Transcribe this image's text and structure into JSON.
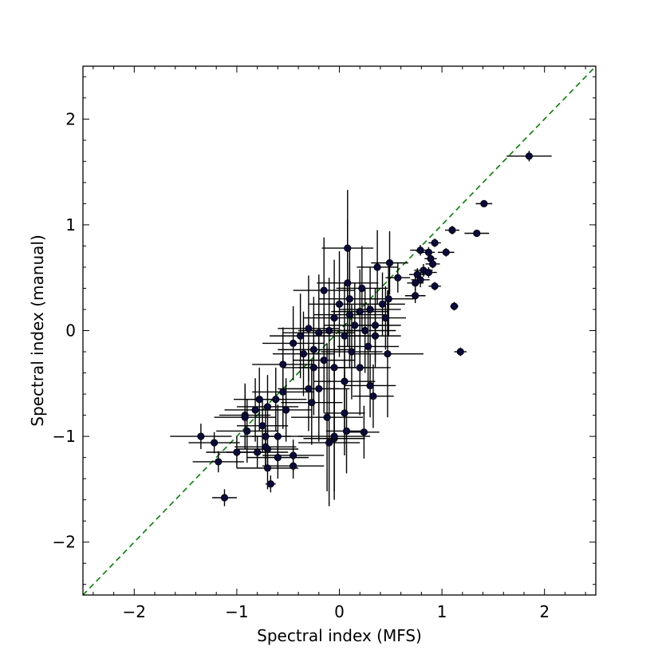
{
  "chart_data": {
    "type": "scatter",
    "title": "",
    "xlabel": "Spectral index (MFS)",
    "ylabel": "Spectral index (manual)",
    "xlim": [
      -2.5,
      2.5
    ],
    "ylim": [
      -2.5,
      2.5
    ],
    "xticks": [
      -2,
      -1,
      0,
      1,
      2
    ],
    "yticks": [
      -2,
      -1,
      0,
      1,
      2
    ],
    "xtick_labels": [
      "−2",
      "−1",
      "0",
      "1",
      "2"
    ],
    "ytick_labels": [
      "−2",
      "−1",
      "0",
      "1",
      "2"
    ],
    "grid": false,
    "reference_line": {
      "style": "dashed",
      "color": "#008000",
      "slope": 1,
      "intercept": 0
    },
    "marker_color": "#0a0a3c",
    "errorbar_color": "#000000",
    "series": [
      {
        "points": [
          {
            "x": 1.85,
            "y": 1.65,
            "xerr": 0.22,
            "yerr": 0.05
          },
          {
            "x": 1.41,
            "y": 1.2,
            "xerr": 0.08,
            "yerr": 0.03
          },
          {
            "x": 1.1,
            "y": 0.95,
            "xerr": 0.07,
            "yerr": 0.04
          },
          {
            "x": 1.34,
            "y": 0.92,
            "xerr": 0.12,
            "yerr": 0.03
          },
          {
            "x": 0.93,
            "y": 0.83,
            "xerr": 0.06,
            "yerr": 0.04
          },
          {
            "x": 1.04,
            "y": 0.74,
            "xerr": 0.08,
            "yerr": 0.04
          },
          {
            "x": 0.79,
            "y": 0.76,
            "xerr": 0.1,
            "yerr": 0.05
          },
          {
            "x": 0.87,
            "y": 0.74,
            "xerr": 0.06,
            "yerr": 0.05
          },
          {
            "x": 0.89,
            "y": 0.68,
            "xerr": 0.06,
            "yerr": 0.04
          },
          {
            "x": 0.91,
            "y": 0.63,
            "xerr": 0.07,
            "yerr": 0.04
          },
          {
            "x": 0.82,
            "y": 0.57,
            "xerr": 0.09,
            "yerr": 0.06
          },
          {
            "x": 0.87,
            "y": 0.55,
            "xerr": 0.08,
            "yerr": 0.05
          },
          {
            "x": 0.76,
            "y": 0.53,
            "xerr": 0.08,
            "yerr": 0.06
          },
          {
            "x": 0.79,
            "y": 0.48,
            "xerr": 0.09,
            "yerr": 0.07
          },
          {
            "x": 0.74,
            "y": 0.45,
            "xerr": 0.08,
            "yerr": 0.07
          },
          {
            "x": 0.93,
            "y": 0.42,
            "xerr": 0.06,
            "yerr": 0.04
          },
          {
            "x": 0.74,
            "y": 0.33,
            "xerr": 0.1,
            "yerr": 0.07
          },
          {
            "x": 1.12,
            "y": 0.23,
            "xerr": 0.04,
            "yerr": 0.04
          },
          {
            "x": 1.18,
            "y": -0.2,
            "xerr": 0.06,
            "yerr": 0.04
          },
          {
            "x": 0.57,
            "y": 0.5,
            "xerr": 0.12,
            "yerr": 0.14
          },
          {
            "x": 0.49,
            "y": 0.64,
            "xerr": 0.18,
            "yerr": 0.3
          },
          {
            "x": 0.37,
            "y": 0.6,
            "xerr": 0.2,
            "yerr": 0.35
          },
          {
            "x": 0.08,
            "y": 0.78,
            "xerr": 0.25,
            "yerr": 0.55
          },
          {
            "x": 0.08,
            "y": 0.45,
            "xerr": 0.3,
            "yerr": 0.6
          },
          {
            "x": 0.48,
            "y": 0.3,
            "xerr": 0.25,
            "yerr": 0.35
          },
          {
            "x": 0.42,
            "y": 0.25,
            "xerr": 0.22,
            "yerr": 0.3
          },
          {
            "x": 0.3,
            "y": 0.2,
            "xerr": 0.3,
            "yerr": 0.4
          },
          {
            "x": 0.2,
            "y": 0.18,
            "xerr": 0.28,
            "yerr": 0.4
          },
          {
            "x": 0.1,
            "y": 0.15,
            "xerr": 0.35,
            "yerr": 0.5
          },
          {
            "x": 0.0,
            "y": 0.25,
            "xerr": 0.3,
            "yerr": 0.5
          },
          {
            "x": -0.05,
            "y": 0.12,
            "xerr": 0.3,
            "yerr": 0.55
          },
          {
            "x": 0.15,
            "y": 0.05,
            "xerr": 0.3,
            "yerr": 0.4
          },
          {
            "x": 0.25,
            "y": 0.0,
            "xerr": 0.3,
            "yerr": 0.4
          },
          {
            "x": 0.35,
            "y": -0.05,
            "xerr": 0.25,
            "yerr": 0.3
          },
          {
            "x": 0.47,
            "y": -0.22,
            "xerr": 0.35,
            "yerr": 0.6
          },
          {
            "x": 0.28,
            "y": -0.15,
            "xerr": 0.3,
            "yerr": 0.4
          },
          {
            "x": 0.05,
            "y": -0.05,
            "xerr": 0.3,
            "yerr": 0.5
          },
          {
            "x": -0.1,
            "y": 0.0,
            "xerr": 0.3,
            "yerr": 0.5
          },
          {
            "x": -0.2,
            "y": -0.02,
            "xerr": 0.35,
            "yerr": 0.55
          },
          {
            "x": -0.3,
            "y": 0.02,
            "xerr": 0.3,
            "yerr": 0.5
          },
          {
            "x": -0.38,
            "y": -0.05,
            "xerr": 0.3,
            "yerr": 0.4
          },
          {
            "x": -0.45,
            "y": -0.12,
            "xerr": 0.3,
            "yerr": 0.35
          },
          {
            "x": -0.25,
            "y": -0.18,
            "xerr": 0.35,
            "yerr": 0.5
          },
          {
            "x": -0.15,
            "y": -0.28,
            "xerr": 0.3,
            "yerr": 0.5
          },
          {
            "x": -0.05,
            "y": -0.35,
            "xerr": 0.35,
            "yerr": 0.6
          },
          {
            "x": 0.2,
            "y": -0.35,
            "xerr": 0.3,
            "yerr": 0.45
          },
          {
            "x": -0.25,
            "y": -0.35,
            "xerr": 0.3,
            "yerr": 0.45
          },
          {
            "x": -0.55,
            "y": -0.32,
            "xerr": 0.3,
            "yerr": 0.35
          },
          {
            "x": -0.2,
            "y": -0.55,
            "xerr": 0.3,
            "yerr": 0.5
          },
          {
            "x": -0.3,
            "y": -0.55,
            "xerr": 0.3,
            "yerr": 0.4
          },
          {
            "x": -0.27,
            "y": -0.68,
            "xerr": 0.3,
            "yerr": 0.4
          },
          {
            "x": 0.05,
            "y": -0.48,
            "xerr": 0.3,
            "yerr": 0.5
          },
          {
            "x": 0.3,
            "y": -0.52,
            "xerr": 0.25,
            "yerr": 0.3
          },
          {
            "x": 0.33,
            "y": -0.62,
            "xerr": 0.2,
            "yerr": 0.3
          },
          {
            "x": -0.55,
            "y": -0.58,
            "xerr": 0.3,
            "yerr": 0.35
          },
          {
            "x": -0.62,
            "y": -0.65,
            "xerr": 0.3,
            "yerr": 0.3
          },
          {
            "x": -0.7,
            "y": -0.72,
            "xerr": 0.3,
            "yerr": 0.3
          },
          {
            "x": -0.78,
            "y": -0.65,
            "xerr": 0.25,
            "yerr": 0.3
          },
          {
            "x": -0.82,
            "y": -0.75,
            "xerr": 0.3,
            "yerr": 0.3
          },
          {
            "x": -0.92,
            "y": -0.8,
            "xerr": 0.25,
            "yerr": 0.3
          },
          {
            "x": -0.75,
            "y": -0.9,
            "xerr": 0.25,
            "yerr": 0.25
          },
          {
            "x": -0.52,
            "y": -0.75,
            "xerr": 0.25,
            "yerr": 0.3
          },
          {
            "x": 0.05,
            "y": -0.78,
            "xerr": 0.2,
            "yerr": 0.4
          },
          {
            "x": -0.12,
            "y": -0.82,
            "xerr": 0.35,
            "yerr": 0.7
          },
          {
            "x": 0.07,
            "y": -0.95,
            "xerr": 0.2,
            "yerr": 0.4
          },
          {
            "x": 0.24,
            "y": -0.96,
            "xerr": 0.15,
            "yerr": 0.25
          },
          {
            "x": -0.05,
            "y": -1.02,
            "xerr": 0.3,
            "yerr": 0.5
          },
          {
            "x": -0.1,
            "y": -1.06,
            "xerr": 0.3,
            "yerr": 0.6
          },
          {
            "x": -0.05,
            "y": -1.0,
            "xerr": 0.35,
            "yerr": 0.6
          },
          {
            "x": -0.6,
            "y": -1.0,
            "xerr": 0.25,
            "yerr": 0.3
          },
          {
            "x": -0.72,
            "y": -1.0,
            "xerr": 0.25,
            "yerr": 0.3
          },
          {
            "x": -0.9,
            "y": -0.95,
            "xerr": 0.3,
            "yerr": 0.3
          },
          {
            "x": -0.92,
            "y": -0.82,
            "xerr": 0.3,
            "yerr": 0.3
          },
          {
            "x": -1.35,
            "y": -1.0,
            "xerr": 0.3,
            "yerr": 0.12
          },
          {
            "x": -1.22,
            "y": -1.06,
            "xerr": 0.25,
            "yerr": 0.1
          },
          {
            "x": -1.18,
            "y": -1.24,
            "xerr": 0.25,
            "yerr": 0.1
          },
          {
            "x": -1.0,
            "y": -1.15,
            "xerr": 0.3,
            "yerr": 0.15
          },
          {
            "x": -0.8,
            "y": -1.15,
            "xerr": 0.3,
            "yerr": 0.15
          },
          {
            "x": -0.7,
            "y": -1.12,
            "xerr": 0.3,
            "yerr": 0.2
          },
          {
            "x": -0.6,
            "y": -1.2,
            "xerr": 0.3,
            "yerr": 0.2
          },
          {
            "x": -0.45,
            "y": -1.18,
            "xerr": 0.3,
            "yerr": 0.15
          },
          {
            "x": -0.7,
            "y": -1.3,
            "xerr": 0.3,
            "yerr": 0.2
          },
          {
            "x": -0.45,
            "y": -1.28,
            "xerr": 0.3,
            "yerr": 0.12
          },
          {
            "x": -0.67,
            "y": -1.45,
            "xerr": 0.05,
            "yerr": 0.08
          },
          {
            "x": -1.12,
            "y": -1.58,
            "xerr": 0.12,
            "yerr": 0.08
          },
          {
            "x": -0.72,
            "y": -1.1,
            "xerr": 0.3,
            "yerr": 0.2
          },
          {
            "x": 0.1,
            "y": 0.3,
            "xerr": 0.3,
            "yerr": 0.5
          },
          {
            "x": 0.22,
            "y": 0.4,
            "xerr": 0.25,
            "yerr": 0.4
          },
          {
            "x": -0.15,
            "y": 0.38,
            "xerr": 0.3,
            "yerr": 0.5
          },
          {
            "x": 0.35,
            "y": 0.05,
            "xerr": 0.25,
            "yerr": 0.35
          },
          {
            "x": 0.45,
            "y": 0.12,
            "xerr": 0.2,
            "yerr": 0.3
          },
          {
            "x": 0.12,
            "y": -0.2,
            "xerr": 0.3,
            "yerr": 0.45
          },
          {
            "x": -0.35,
            "y": -0.22,
            "xerr": 0.3,
            "yerr": 0.4
          }
        ]
      }
    ]
  }
}
